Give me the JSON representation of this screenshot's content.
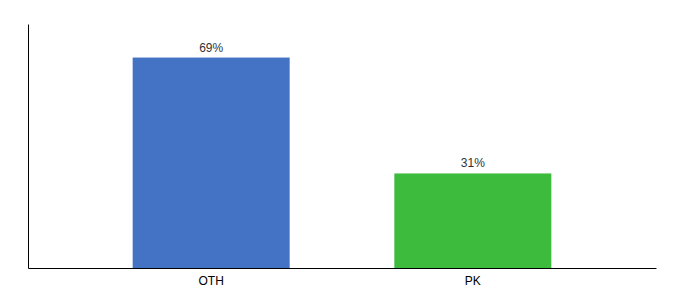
{
  "chart_data": {
    "type": "bar",
    "categories": [
      "OTH",
      "PK"
    ],
    "values": [
      69,
      31
    ],
    "value_labels": [
      "69%",
      "31%"
    ],
    "colors": [
      "#4472c4",
      "#3dbb3d"
    ],
    "ylim": [
      0,
      80
    ],
    "grid": false,
    "data_labels": true,
    "tick_labels": "x"
  }
}
